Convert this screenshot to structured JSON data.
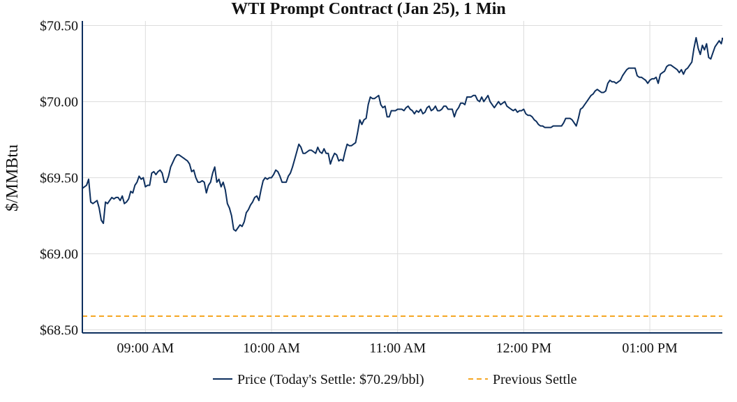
{
  "chart_data": {
    "type": "line",
    "title": "WTI Prompt Contract (Jan 25), 1 Min",
    "xlabel": "",
    "ylabel": "$/MMBtu",
    "x_start_time": "08:30",
    "interval_minutes": 1,
    "xlim_minutes_of_day": [
      510,
      814.5
    ],
    "ylim": [
      68.48,
      70.53
    ],
    "grid": true,
    "y_ticks": [
      {
        "value": 68.5,
        "label": "$68.50"
      },
      {
        "value": 69.0,
        "label": "$69.00"
      },
      {
        "value": 69.5,
        "label": "$69.50"
      },
      {
        "value": 70.0,
        "label": "$70.00"
      },
      {
        "value": 70.5,
        "label": "$70.50"
      }
    ],
    "x_ticks": [
      {
        "value": 540,
        "label": "09:00 AM"
      },
      {
        "value": 600,
        "label": "10:00 AM"
      },
      {
        "value": 660,
        "label": "11:00 AM"
      },
      {
        "value": 720,
        "label": "12:00 PM"
      },
      {
        "value": 780,
        "label": "01:00 PM"
      }
    ],
    "legend_position": "bottom-center",
    "series": [
      {
        "name": "Price (Today's Settle: $70.29/bbl)",
        "color": "#0d2f5e",
        "style": "solid",
        "values": [
          69.43,
          69.44,
          69.45,
          69.49,
          69.34,
          69.33,
          69.34,
          69.35,
          69.3,
          69.22,
          69.2,
          69.34,
          69.33,
          69.35,
          69.37,
          69.36,
          69.37,
          69.37,
          69.35,
          69.38,
          69.33,
          69.34,
          69.36,
          69.41,
          69.4,
          69.45,
          69.47,
          69.51,
          69.49,
          69.5,
          69.44,
          69.45,
          69.45,
          69.53,
          69.54,
          69.52,
          69.54,
          69.55,
          69.53,
          69.47,
          69.47,
          69.51,
          69.57,
          69.6,
          69.63,
          69.65,
          69.65,
          69.64,
          69.63,
          69.62,
          69.61,
          69.59,
          69.54,
          69.55,
          69.5,
          69.47,
          69.47,
          69.48,
          69.47,
          69.4,
          69.45,
          69.47,
          69.53,
          69.57,
          69.47,
          69.49,
          69.44,
          69.47,
          69.42,
          69.33,
          69.3,
          69.25,
          69.16,
          69.15,
          69.17,
          69.19,
          69.18,
          69.21,
          69.27,
          69.29,
          69.32,
          69.34,
          69.37,
          69.38,
          69.35,
          69.42,
          69.48,
          69.5,
          69.49,
          69.5,
          69.5,
          69.52,
          69.55,
          69.54,
          69.51,
          69.47,
          69.47,
          69.47,
          69.51,
          69.53,
          69.57,
          69.62,
          69.67,
          69.72,
          69.7,
          69.66,
          69.66,
          69.67,
          69.68,
          69.68,
          69.67,
          69.66,
          69.7,
          69.67,
          69.66,
          69.69,
          69.66,
          69.66,
          69.59,
          69.63,
          69.66,
          69.65,
          69.61,
          69.62,
          69.61,
          69.67,
          69.72,
          69.71,
          69.71,
          69.72,
          69.73,
          69.8,
          69.88,
          69.85,
          69.88,
          69.89,
          69.98,
          70.03,
          70.02,
          70.02,
          70.03,
          70.04,
          69.98,
          69.96,
          69.97,
          69.9,
          69.9,
          69.94,
          69.94,
          69.94,
          69.95,
          69.95,
          69.95,
          69.94,
          69.96,
          69.97,
          69.95,
          69.94,
          69.92,
          69.94,
          69.93,
          69.95,
          69.92,
          69.93,
          69.96,
          69.97,
          69.94,
          69.95,
          69.97,
          69.94,
          69.94,
          69.95,
          69.97,
          69.97,
          69.95,
          69.95,
          69.95,
          69.9,
          69.94,
          69.96,
          69.99,
          69.99,
          69.98,
          70.03,
          70.03,
          70.03,
          70.04,
          70.04,
          70.01,
          70.0,
          70.03,
          70.0,
          70.02,
          70.04,
          70.0,
          69.98,
          69.96,
          69.98,
          70.0,
          69.98,
          69.99,
          70.0,
          69.97,
          69.96,
          69.95,
          69.94,
          69.95,
          69.93,
          69.94,
          69.94,
          69.95,
          69.92,
          69.91,
          69.91,
          69.9,
          69.88,
          69.87,
          69.85,
          69.84,
          69.84,
          69.83,
          69.83,
          69.83,
          69.83,
          69.84,
          69.84,
          69.84,
          69.84,
          69.84,
          69.86,
          69.89,
          69.89,
          69.89,
          69.88,
          69.86,
          69.84,
          69.89,
          69.95,
          69.96,
          69.98,
          70.0,
          70.02,
          70.04,
          70.05,
          70.07,
          70.08,
          70.07,
          70.06,
          70.06,
          70.07,
          70.12,
          70.14,
          70.13,
          70.13,
          70.12,
          70.13,
          70.14,
          70.17,
          70.19,
          70.21,
          70.22,
          70.22,
          70.22,
          70.22,
          70.17,
          70.16,
          70.16,
          70.15,
          70.14,
          70.12,
          70.14,
          70.15,
          70.15,
          70.16,
          70.12,
          70.18,
          70.19,
          70.2,
          70.23,
          70.24,
          70.24,
          70.23,
          70.22,
          70.21,
          70.19,
          70.21,
          70.18,
          70.21,
          70.22,
          70.24,
          70.26,
          70.35,
          70.42,
          70.35,
          70.31,
          70.37,
          70.34,
          70.38,
          70.29,
          70.28,
          70.32,
          70.36,
          70.38,
          70.4,
          70.38,
          70.41,
          70.42
        ]
      },
      {
        "name": "Previous Settle",
        "color": "#f5a623",
        "style": "dashed",
        "constant_value": 68.59
      }
    ]
  }
}
